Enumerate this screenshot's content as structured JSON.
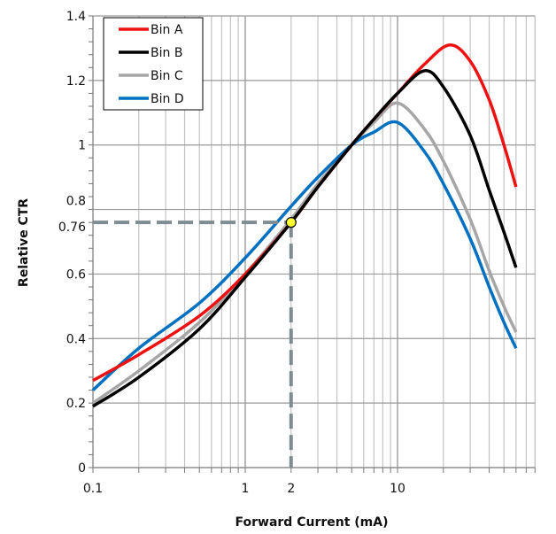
{
  "chart_data": {
    "type": "line",
    "title": "",
    "xlabel": "Forward Current (mA)",
    "ylabel": "Relative CTR",
    "xscale": "log",
    "xlim": [
      0.1,
      80
    ],
    "ylim": [
      0,
      1.4
    ],
    "grid": true,
    "legend_position": "top-left",
    "x_tick_labels": [
      "0.1",
      "1",
      "2",
      "10"
    ],
    "x_tick_values": [
      0.1,
      1,
      2,
      10
    ],
    "y_tick_labels": [
      "0",
      "0.2",
      "0.4",
      "0.6",
      "0.76",
      "0.8",
      "1",
      "1.2",
      "1.4"
    ],
    "y_tick_values": [
      0,
      0.2,
      0.4,
      0.6,
      0.76,
      0.8,
      1,
      1.2,
      1.4
    ],
    "series": [
      {
        "name": "Bin A",
        "color": "#ee1111",
        "x": [
          0.1,
          0.2,
          0.5,
          1,
          2,
          3,
          5,
          7,
          10,
          15,
          22,
          30,
          40,
          50,
          60
        ],
        "y": [
          0.27,
          0.35,
          0.47,
          0.6,
          0.76,
          0.87,
          1.0,
          1.08,
          1.16,
          1.25,
          1.31,
          1.26,
          1.14,
          1.0,
          0.87
        ]
      },
      {
        "name": "Bin B",
        "color": "#000000",
        "x": [
          0.1,
          0.2,
          0.5,
          1,
          2,
          3,
          5,
          7,
          10,
          15,
          20,
          30,
          40,
          50,
          60
        ],
        "y": [
          0.19,
          0.28,
          0.43,
          0.59,
          0.76,
          0.87,
          1.0,
          1.08,
          1.16,
          1.23,
          1.18,
          1.03,
          0.86,
          0.73,
          0.62
        ]
      },
      {
        "name": "Bin C",
        "color": "#a6a6a6",
        "x": [
          0.1,
          0.2,
          0.5,
          1,
          2,
          3,
          5,
          7,
          10,
          15,
          20,
          30,
          40,
          50,
          60
        ],
        "y": [
          0.2,
          0.3,
          0.45,
          0.6,
          0.77,
          0.88,
          1.0,
          1.07,
          1.13,
          1.05,
          0.95,
          0.77,
          0.61,
          0.5,
          0.42
        ]
      },
      {
        "name": "Bin D",
        "color": "#0070c0",
        "x": [
          0.1,
          0.2,
          0.5,
          1,
          2,
          3,
          5,
          7,
          10,
          15,
          20,
          30,
          40,
          50,
          60
        ],
        "y": [
          0.24,
          0.37,
          0.51,
          0.65,
          0.81,
          0.9,
          1.0,
          1.04,
          1.07,
          0.98,
          0.88,
          0.71,
          0.56,
          0.45,
          0.37
        ]
      }
    ],
    "annotations": [
      {
        "type": "dashed-crosshair",
        "x": 2,
        "y": 0.76,
        "color": "#7f8c93"
      },
      {
        "type": "marker",
        "x": 2,
        "y": 0.76,
        "fill": "#ffff33"
      }
    ]
  }
}
